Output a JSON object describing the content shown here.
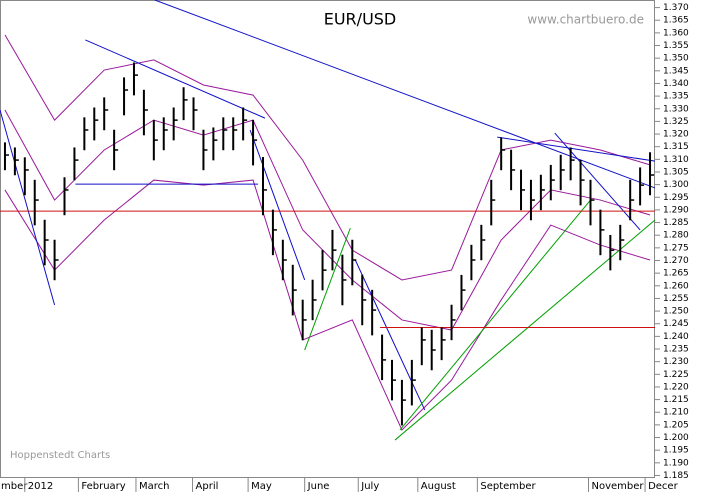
{
  "chart_data": {
    "type": "ohlc",
    "title": "EUR/USD",
    "subtitle": "www.chartbuero.de",
    "annotation": "Hoppenstedt Charts",
    "color": "#000000",
    "xlim": [
      -0.5,
      65.5
    ],
    "ylim": [
      1.184,
      1.373
    ],
    "xticks": [
      {
        "value": -0.7,
        "label": "mber"
      },
      {
        "value": 2.0,
        "label": "2012"
      },
      {
        "value": 7.4,
        "label": "February"
      },
      {
        "value": 13.2,
        "label": "March"
      },
      {
        "value": 18.9,
        "label": "April"
      },
      {
        "value": 24.5,
        "label": "May"
      },
      {
        "value": 30.2,
        "label": "June"
      },
      {
        "value": 35.6,
        "label": "July"
      },
      {
        "value": 41.6,
        "label": "August"
      },
      {
        "value": 47.6,
        "label": "September"
      },
      {
        "value": 58.8,
        "label": "November"
      },
      {
        "value": 64.5,
        "label": "Decer"
      }
    ],
    "yticks": [
      1.185,
      {
        "value": 1.19,
        "label": "1.190"
      },
      1.195,
      {
        "value": 1.2,
        "label": "1.200"
      },
      1.205,
      {
        "value": 1.21,
        "label": "1.210"
      },
      1.215,
      {
        "value": 1.22,
        "label": "1.220"
      },
      1.225,
      {
        "value": 1.23,
        "label": "1.230"
      },
      1.235,
      {
        "value": 1.24,
        "label": "1.240"
      },
      1.245,
      {
        "value": 1.25,
        "label": "1.250"
      },
      1.255,
      {
        "value": 1.26,
        "label": "1.260"
      },
      1.265,
      {
        "value": 1.27,
        "label": "1.270"
      },
      1.275,
      {
        "value": 1.28,
        "label": "1.280"
      },
      1.285,
      {
        "value": 1.29,
        "label": "1.290"
      },
      1.295,
      {
        "value": 1.3,
        "label": "1.300"
      },
      1.305,
      {
        "value": 1.31,
        "label": "1.310"
      },
      1.315,
      {
        "value": 1.32,
        "label": "1.320"
      },
      1.325,
      {
        "value": 1.33,
        "label": "1.330"
      },
      1.335,
      {
        "value": 1.34,
        "label": "1.340"
      },
      1.345,
      {
        "value": 1.35,
        "label": "1.350"
      },
      1.355,
      {
        "value": 1.36,
        "label": "1.360"
      },
      1.365,
      {
        "value": 1.37,
        "label": "1.370"
      }
    ],
    "high": [
      1.3167,
      1.3147,
      1.3108,
      1.3019,
      1.2861,
      1.2782,
      1.3029,
      1.3147,
      1.3266,
      1.3305,
      1.3345,
      1.3217,
      1.3424,
      1.3483,
      1.3375,
      1.3256,
      1.3266,
      1.3305,
      1.3385,
      1.3345,
      1.3217,
      1.3226,
      1.3266,
      1.3266,
      1.3305,
      1.3256,
      1.3109,
      1.2901,
      1.2782,
      1.2683,
      1.2545,
      1.2624,
      1.2742,
      1.2821,
      1.2723,
      1.2782,
      1.2644,
      1.2584,
      1.2407,
      1.2307,
      1.2228,
      1.2307,
      1.2436,
      1.2426,
      1.2436,
      1.2525,
      1.2643,
      1.2762,
      1.2841,
      1.3019,
      1.3187,
      1.3138,
      1.3059,
      1.3019,
      1.3039,
      1.3078,
      1.3118,
      1.3147,
      1.3098,
      1.3019,
      1.2901,
      1.2801,
      1.2841,
      1.3019,
      1.3068,
      1.3128
    ],
    "low": [
      1.3057,
      1.3037,
      1.2958,
      1.2839,
      1.2681,
      1.2622,
      1.2879,
      1.3017,
      1.3136,
      1.3175,
      1.3215,
      1.3057,
      1.3274,
      1.3353,
      1.3195,
      1.3096,
      1.3136,
      1.3175,
      1.3255,
      1.3215,
      1.3057,
      1.3096,
      1.3136,
      1.3136,
      1.3175,
      1.3076,
      1.2879,
      1.2721,
      1.2622,
      1.2483,
      1.2385,
      1.2464,
      1.2582,
      1.2661,
      1.2523,
      1.2602,
      1.2444,
      1.2404,
      1.2227,
      1.2147,
      1.2048,
      1.2127,
      1.2286,
      1.2266,
      1.2306,
      1.2385,
      1.2503,
      1.2622,
      1.2701,
      1.2839,
      1.3057,
      1.2978,
      1.2899,
      1.2859,
      1.2899,
      1.2938,
      1.2978,
      1.3017,
      1.2918,
      1.2839,
      1.2721,
      1.2661,
      1.2701,
      1.2859,
      1.2918,
      1.2958
    ],
    "close": [
      1.3117,
      1.3097,
      1.3058,
      1.2939,
      1.2781,
      1.2702,
      1.2979,
      1.3097,
      1.3216,
      1.3255,
      1.3295,
      1.3137,
      1.3374,
      1.3433,
      1.3295,
      1.3176,
      1.3216,
      1.3255,
      1.3335,
      1.3295,
      1.3137,
      1.3176,
      1.3216,
      1.3216,
      1.3255,
      1.3176,
      1.2979,
      1.2821,
      1.2702,
      1.2583,
      1.2465,
      1.2544,
      1.2662,
      1.2741,
      1.2623,
      1.2702,
      1.2544,
      1.2504,
      1.2307,
      1.2227,
      1.2148,
      1.2227,
      1.2386,
      1.2346,
      1.2386,
      1.2465,
      1.2583,
      1.2702,
      1.2781,
      1.2939,
      1.3137,
      1.3058,
      1.2979,
      1.2939,
      1.2979,
      1.3018,
      1.3058,
      1.3097,
      1.3018,
      1.2939,
      1.2821,
      1.2741,
      1.2781,
      1.2939,
      1.2998,
      1.3038
    ],
    "bands": {
      "color": "#9a1a9a",
      "x": [
        0,
        5,
        10,
        15,
        20,
        25,
        30,
        35,
        40,
        45,
        50,
        55,
        60,
        65
      ],
      "upper": [
        1.3592,
        1.3255,
        1.3453,
        1.3493,
        1.3394,
        1.3354,
        1.3097,
        1.2741,
        1.2623,
        1.2662,
        1.3137,
        1.3176,
        1.3137,
        1.3078
      ],
      "middle": [
        1.3295,
        1.2939,
        1.3137,
        1.3255,
        1.3196,
        1.3255,
        1.2821,
        1.2623,
        1.2465,
        1.2425,
        1.2781,
        1.2979,
        1.2939,
        1.288
      ],
      "lower": [
        1.2979,
        1.2662,
        1.286,
        1.3018,
        1.2998,
        1.3018,
        1.2386,
        1.2465,
        1.203,
        1.2227,
        1.2544,
        1.284,
        1.2761,
        1.2702
      ]
    },
    "trendlines": [
      {
        "color": "#1010c8",
        "x": [
          -0.5,
          5.0
        ],
        "values": [
          1.3295,
          1.2524
        ]
      },
      {
        "color": "#1010c8",
        "x": [
          8.1,
          26.2
        ],
        "values": [
          1.3572,
          1.3263
        ]
      },
      {
        "color": "#1010c8",
        "x": [
          15.1,
          65.5
        ],
        "values": [
          1.373,
          1.2987
        ]
      },
      {
        "color": "#1010c8",
        "x": [
          7.1,
          25.5
        ],
        "values": [
          1.3002,
          1.3002
        ]
      },
      {
        "color": "#1010c8",
        "x": [
          24.7,
          30.2
        ],
        "values": [
          1.3216,
          1.2623
        ]
      },
      {
        "color": "#1010c8",
        "x": [
          35.3,
          42.3
        ],
        "values": [
          1.2702,
          1.2109
        ]
      },
      {
        "color": "#1010c8",
        "x": [
          49.6,
          65.5
        ],
        "values": [
          1.3188,
          1.3093
        ]
      },
      {
        "color": "#1010c8",
        "x": [
          55.4,
          64.0
        ],
        "values": [
          1.3204,
          1.2821
        ]
      },
      {
        "color": "#00a000",
        "x": [
          30.2,
          34.8
        ],
        "values": [
          1.2346,
          1.2828
        ]
      },
      {
        "color": "#00a000",
        "x": [
          39.8,
          59.0
        ],
        "values": [
          1.203,
          1.2939
        ]
      },
      {
        "color": "#00a000",
        "x": [
          39.3,
          65.5
        ],
        "values": [
          1.199,
          1.286
        ]
      },
      {
        "color": "#d01010",
        "x": [
          -0.5,
          65.5
        ],
        "values": [
          1.2895,
          1.2895
        ]
      },
      {
        "color": "#d01010",
        "x": [
          37.8,
          65.5
        ],
        "values": [
          1.2435,
          1.2435
        ]
      }
    ]
  }
}
